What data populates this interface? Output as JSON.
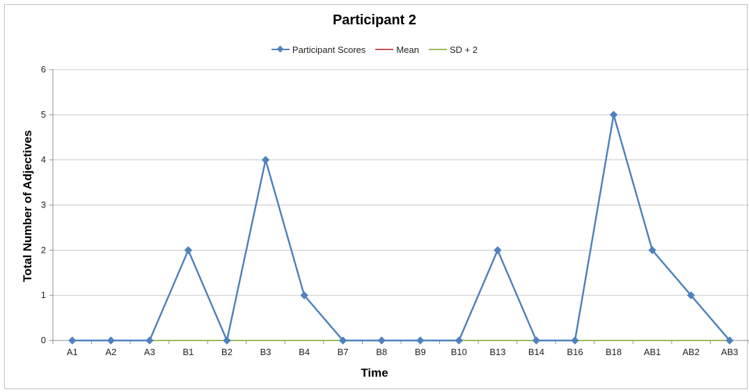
{
  "chart_data": {
    "type": "line",
    "title": "Participant 2",
    "xlabel": "Time",
    "ylabel": "Total Number of Adjectives",
    "categories": [
      "A1",
      "A2",
      "A3",
      "B1",
      "B2",
      "B3",
      "B4",
      "B7",
      "B8",
      "B9",
      "B10",
      "B13",
      "B14",
      "B16",
      "B18",
      "AB1",
      "AB2",
      "AB3"
    ],
    "ylim": [
      0,
      6
    ],
    "yticks": [
      0,
      1,
      2,
      3,
      4,
      5,
      6
    ],
    "grid": true,
    "legend_position": "top",
    "series": [
      {
        "name": "Participant Scores",
        "color": "#4f81bd",
        "marker": "diamond",
        "values": [
          0,
          0,
          0,
          2,
          0,
          4,
          1,
          0,
          0,
          0,
          0,
          2,
          0,
          0,
          5,
          2,
          1,
          0
        ]
      },
      {
        "name": "Mean",
        "color": "#c0504d",
        "marker": "none",
        "values": [
          0,
          0,
          0,
          0,
          0,
          0,
          0,
          0,
          0,
          0,
          0,
          0,
          0,
          0,
          0,
          0,
          0,
          0
        ]
      },
      {
        "name": "SD + 2",
        "color": "#9bbb59",
        "marker": "none",
        "values": [
          0,
          0,
          0,
          0,
          0,
          0,
          0,
          0,
          0,
          0,
          0,
          0,
          0,
          0,
          0,
          0,
          0,
          0
        ]
      }
    ]
  }
}
